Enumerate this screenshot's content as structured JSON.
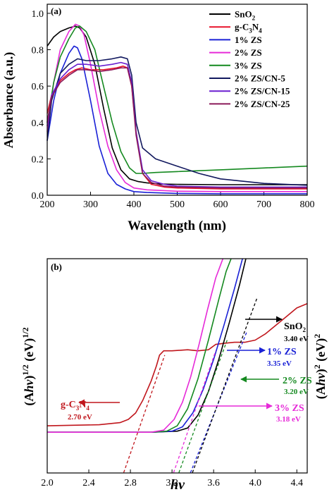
{
  "chart_data": [
    {
      "type": "line",
      "panel_label": "(a)",
      "xlabel": "Wavelength (nm)",
      "ylabel": "Absorbance (a.u.)",
      "xlim": [
        200,
        800
      ],
      "ylim": [
        0,
        1.05
      ],
      "xticks": [
        "200",
        "300",
        "400",
        "500",
        "600",
        "700",
        "800"
      ],
      "yticks": [
        "0.0",
        "0.2",
        "0.4",
        "0.6",
        "0.8",
        "1.0"
      ],
      "legend_position": "top-right",
      "series": [
        {
          "name": "SnO2",
          "label_base": "SnO",
          "label_sub": "2",
          "label_tail": "",
          "color": "#000000",
          "x": [
            200,
            215,
            230,
            250,
            265,
            275,
            290,
            310,
            330,
            350,
            370,
            390,
            410,
            430,
            460,
            500,
            600,
            700,
            800
          ],
          "y": [
            0.82,
            0.87,
            0.9,
            0.92,
            0.93,
            0.92,
            0.87,
            0.72,
            0.48,
            0.26,
            0.14,
            0.09,
            0.075,
            0.068,
            0.062,
            0.06,
            0.058,
            0.058,
            0.058
          ]
        },
        {
          "name": "g-C3N4",
          "label_base": "g-C",
          "label_sub": "3",
          "label_mid": "N",
          "label_sub2": "4",
          "color": "#e8132b",
          "x": [
            200,
            210,
            230,
            250,
            265,
            280,
            300,
            330,
            360,
            375,
            385,
            395,
            405,
            420,
            440,
            470,
            500,
            600,
            700,
            800
          ],
          "y": [
            0.45,
            0.55,
            0.63,
            0.67,
            0.69,
            0.7,
            0.69,
            0.69,
            0.7,
            0.71,
            0.7,
            0.6,
            0.35,
            0.12,
            0.06,
            0.045,
            0.04,
            0.035,
            0.035,
            0.035
          ]
        },
        {
          "name": "1% ZS",
          "label_base": "1% ZS",
          "color": "#1a21d6",
          "x": [
            200,
            215,
            230,
            250,
            262,
            270,
            280,
            300,
            320,
            340,
            360,
            380,
            400,
            430,
            500,
            600,
            700,
            800
          ],
          "y": [
            0.3,
            0.52,
            0.67,
            0.78,
            0.82,
            0.81,
            0.75,
            0.52,
            0.27,
            0.12,
            0.06,
            0.035,
            0.02,
            0.015,
            0.01,
            0.008,
            0.008,
            0.008
          ]
        },
        {
          "name": "2% ZS",
          "label_base": "2% ZS",
          "color": "#e62ad8",
          "x": [
            200,
            215,
            230,
            250,
            265,
            275,
            285,
            300,
            320,
            340,
            360,
            380,
            400,
            430,
            500,
            600,
            700,
            800
          ],
          "y": [
            0.35,
            0.62,
            0.8,
            0.9,
            0.94,
            0.93,
            0.88,
            0.72,
            0.47,
            0.27,
            0.14,
            0.07,
            0.04,
            0.03,
            0.022,
            0.02,
            0.02,
            0.02
          ]
        },
        {
          "name": "3% ZS",
          "label_base": "3% ZS",
          "color": "#14891f",
          "x": [
            200,
            215,
            230,
            250,
            265,
            275,
            290,
            310,
            330,
            350,
            370,
            390,
            405,
            420,
            450,
            500,
            600,
            700,
            800
          ],
          "y": [
            0.4,
            0.62,
            0.76,
            0.86,
            0.92,
            0.93,
            0.9,
            0.8,
            0.6,
            0.4,
            0.24,
            0.15,
            0.12,
            0.12,
            0.125,
            0.13,
            0.14,
            0.15,
            0.16
          ]
        },
        {
          "name": "2% ZS/CN-5",
          "label_base": "2% ZS/CN-5",
          "color": "#11185e",
          "x": [
            200,
            210,
            230,
            250,
            270,
            290,
            320,
            350,
            370,
            385,
            395,
            405,
            420,
            450,
            500,
            550,
            600,
            700,
            800
          ],
          "y": [
            0.3,
            0.52,
            0.67,
            0.72,
            0.75,
            0.74,
            0.74,
            0.75,
            0.76,
            0.75,
            0.66,
            0.4,
            0.26,
            0.2,
            0.16,
            0.12,
            0.09,
            0.065,
            0.055
          ]
        },
        {
          "name": "2% ZS/CN-15",
          "label_base": "2% ZS/CN-15",
          "color": "#6a1fd0",
          "x": [
            200,
            210,
            230,
            250,
            270,
            290,
            320,
            350,
            370,
            385,
            395,
            405,
            420,
            440,
            470,
            500,
            600,
            700,
            800
          ],
          "y": [
            0.38,
            0.55,
            0.64,
            0.69,
            0.72,
            0.72,
            0.71,
            0.72,
            0.73,
            0.72,
            0.62,
            0.35,
            0.14,
            0.08,
            0.06,
            0.05,
            0.045,
            0.045,
            0.045
          ]
        },
        {
          "name": "2% ZS/CN-25",
          "label_base": "2% ZS/CN-25",
          "color": "#8b1a5a",
          "x": [
            200,
            210,
            230,
            250,
            270,
            290,
            320,
            350,
            370,
            385,
            395,
            405,
            420,
            440,
            470,
            500,
            600,
            700,
            800
          ],
          "y": [
            0.4,
            0.54,
            0.62,
            0.66,
            0.69,
            0.69,
            0.68,
            0.69,
            0.7,
            0.7,
            0.6,
            0.33,
            0.12,
            0.07,
            0.05,
            0.045,
            0.04,
            0.04,
            0.04
          ]
        }
      ]
    },
    {
      "type": "line",
      "panel_label": "(b)",
      "xlabel": "hv",
      "ylabel_left": "(Ahv)1/2 (eV)1/2",
      "ylabel_right": "(Ahv)2 (eV)2",
      "xlim": [
        2.0,
        4.5
      ],
      "ylim": [
        0,
        1
      ],
      "xticks": [
        "2.0",
        "2.4",
        "2.8",
        "3.2",
        "3.6",
        "4.0",
        "4.4"
      ],
      "series": [
        {
          "name": "g-C3N4",
          "color": "#c0161c",
          "x": [
            2.0,
            2.5,
            2.7,
            2.78,
            2.85,
            2.92,
            3.0,
            3.05,
            3.08,
            3.12,
            3.2,
            3.35,
            3.45,
            3.55,
            3.62,
            3.7,
            3.8,
            3.9,
            4.0,
            4.1,
            4.2,
            4.3,
            4.4,
            4.5
          ],
          "y": [
            0.22,
            0.225,
            0.235,
            0.25,
            0.28,
            0.34,
            0.43,
            0.5,
            0.55,
            0.57,
            0.57,
            0.575,
            0.57,
            0.575,
            0.6,
            0.605,
            0.61,
            0.61,
            0.62,
            0.65,
            0.69,
            0.73,
            0.77,
            0.79
          ]
        },
        {
          "name": "SnO2",
          "color": "#000000",
          "x": [
            2.0,
            3.0,
            3.25,
            3.35,
            3.45,
            3.55,
            3.65,
            3.75,
            3.85,
            3.93
          ],
          "y": [
            0.19,
            0.19,
            0.195,
            0.21,
            0.27,
            0.38,
            0.53,
            0.7,
            0.88,
            1.04
          ]
        },
        {
          "name": "1% ZS",
          "color": "#1a21d6",
          "x": [
            2.0,
            3.0,
            3.2,
            3.3,
            3.4,
            3.5,
            3.6,
            3.7,
            3.8,
            3.9
          ],
          "y": [
            0.19,
            0.19,
            0.195,
            0.215,
            0.28,
            0.39,
            0.53,
            0.69,
            0.86,
            1.04
          ]
        },
        {
          "name": "2% ZS",
          "color": "#14891f",
          "x": [
            2.0,
            3.0,
            3.15,
            3.25,
            3.35,
            3.45,
            3.55,
            3.65,
            3.72,
            3.8
          ],
          "y": [
            0.19,
            0.19,
            0.195,
            0.22,
            0.3,
            0.44,
            0.62,
            0.81,
            0.94,
            1.04
          ]
        },
        {
          "name": "3% ZS",
          "color": "#e62ad8",
          "x": [
            2.0,
            3.0,
            3.12,
            3.22,
            3.3,
            3.38,
            3.46,
            3.54,
            3.62,
            3.72
          ],
          "y": [
            0.19,
            0.19,
            0.2,
            0.25,
            0.33,
            0.45,
            0.6,
            0.76,
            0.91,
            1.04
          ]
        }
      ],
      "tangent_lines": [
        {
          "color": "#c0161c",
          "x": [
            2.72,
            3.13
          ],
          "y": [
            -0.02,
            0.55
          ]
        },
        {
          "color": "#e62ad8",
          "x": [
            3.2,
            3.62
          ],
          "y": [
            -0.02,
            0.57
          ]
        },
        {
          "color": "#14891f",
          "x": [
            3.25,
            3.73
          ],
          "y": [
            -0.02,
            0.62
          ]
        },
        {
          "color": "#1a21d6",
          "x": [
            3.36,
            3.92
          ],
          "y": [
            -0.02,
            0.66
          ]
        },
        {
          "color": "#000000",
          "x": [
            3.38,
            4.02
          ],
          "y": [
            -0.02,
            0.82
          ]
        }
      ],
      "annotations": [
        {
          "label_base": "SnO",
          "label_sub": "2",
          "value": "3.40 eV",
          "color": "#000000",
          "arrow": "right"
        },
        {
          "label_base": "1% ZS",
          "value": "3.35 eV",
          "color": "#1a21d6",
          "arrow": "right"
        },
        {
          "label_base": "2% ZS",
          "value": "3.20 eV",
          "color": "#14891f",
          "arrow": "left"
        },
        {
          "label_base": "3% ZS",
          "value": "3.18 eV",
          "color": "#e62ad8",
          "arrow": "right"
        },
        {
          "label_base": "g-C",
          "label_sub": "3",
          "label_mid": "N",
          "label_sub2": "4",
          "value": "2.70 eV",
          "color": "#c0161c",
          "arrow": "left"
        }
      ]
    }
  ]
}
